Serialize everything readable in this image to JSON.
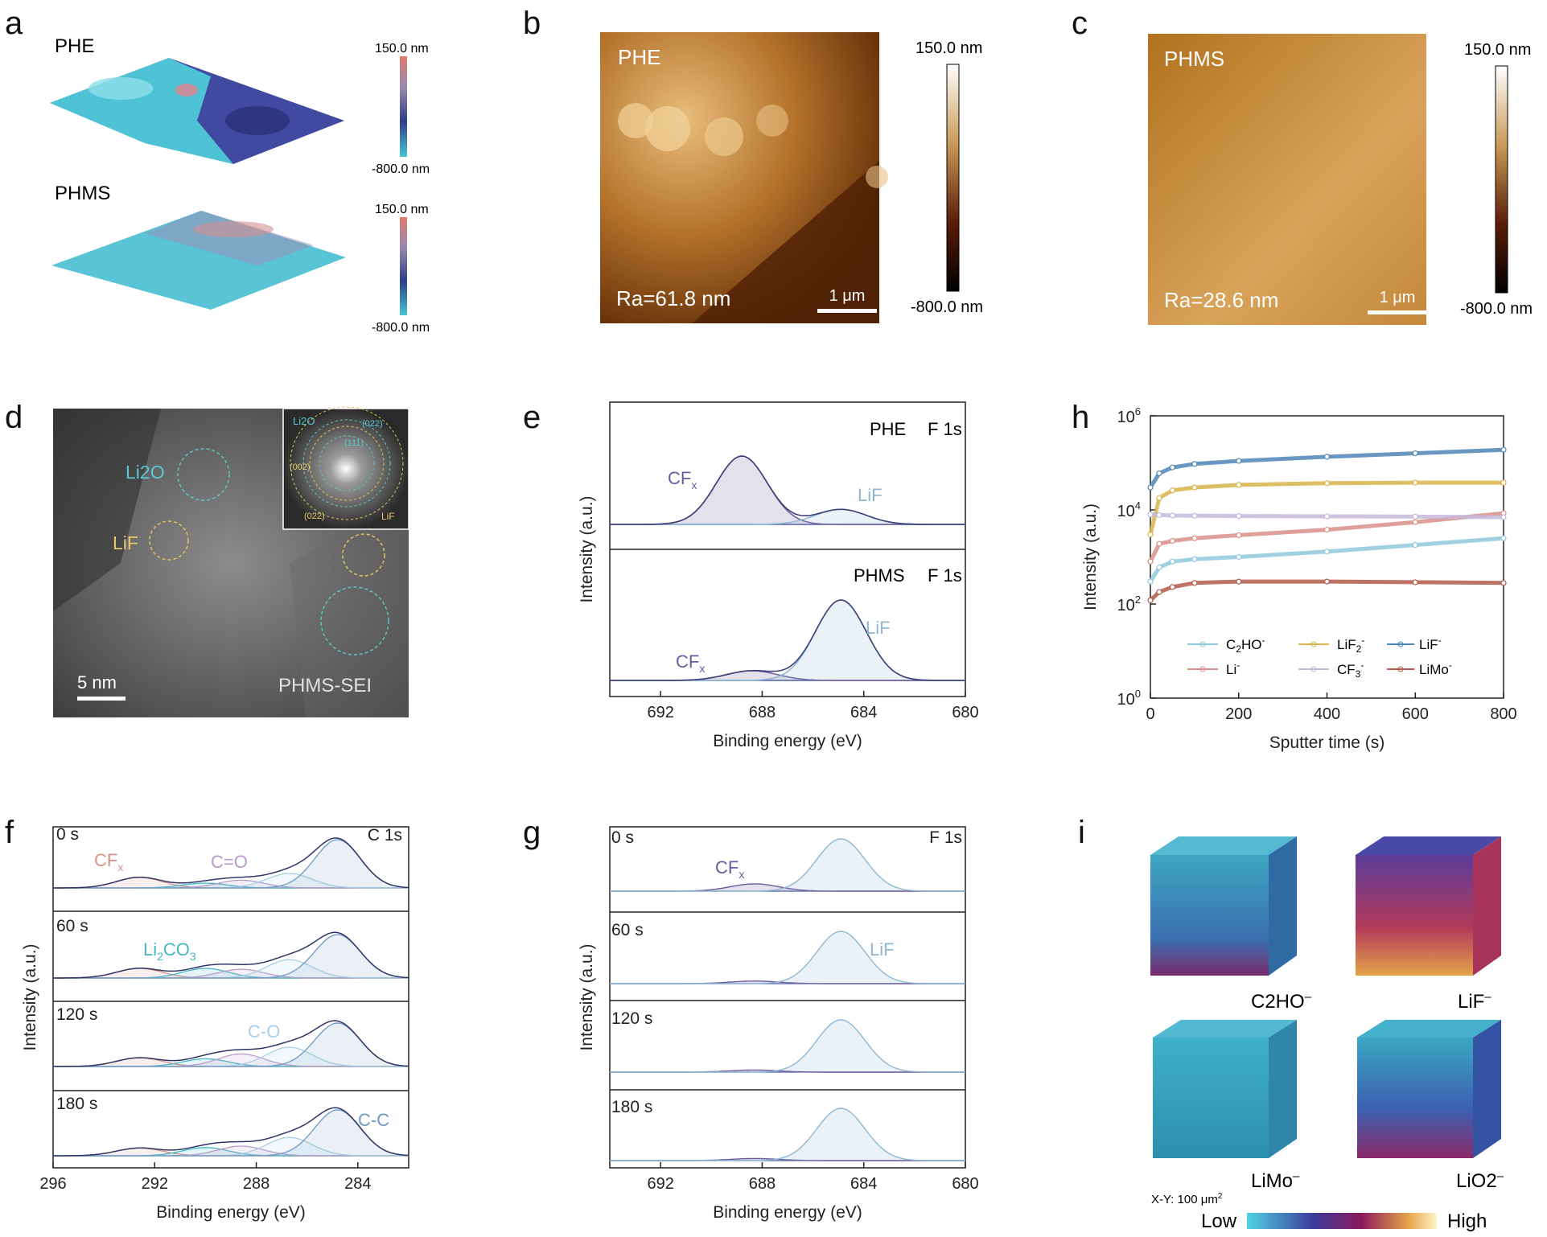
{
  "panel_letters": [
    "a",
    "b",
    "c",
    "d",
    "e",
    "h",
    "f",
    "g",
    "i"
  ],
  "colors": {
    "afm_gold_dark": "#8a4f0f",
    "afm_gold_light": "#e9b169",
    "xps_blue": "#8fb7d3",
    "xps_purple": "#6b5a9c",
    "xps_baseline": "#4a5aa0",
    "cfx_red": "#d08a86",
    "licoo_teal": "#46b6c3",
    "cc_blue": "#7aa7c9"
  },
  "panel_a": {
    "phe_label": "PHE",
    "phms_label": "PHMS",
    "scale_top": "150.0 nm",
    "scale_bottom": "-800.0 nm"
  },
  "panel_b": {
    "label": "PHE",
    "roughness": "Ra=61.8 nm",
    "scalebar": "1 μm",
    "cbar_top": "150.0 nm",
    "cbar_bottom": "-800.0 nm"
  },
  "panel_c": {
    "label": "PHMS",
    "roughness": "Ra=28.6 nm",
    "scalebar": "1 μm",
    "cbar_top": "150.0 nm",
    "cbar_bottom": "-800.0 nm"
  },
  "panel_d": {
    "li2o": "Li2O",
    "lif": "LiF",
    "scalebar": "5 nm",
    "caption": "PHMS-SEI",
    "fft_li2o": "Li2O",
    "fft_lif": "LiF",
    "fft_022_top": "(022)",
    "fft_111": "(111)",
    "fft_002": "(002)",
    "fft_022_bottom": "(022)"
  },
  "chart_data": [
    {
      "panel": "e",
      "type": "line",
      "xlabel": "Binding energy (eV)",
      "ylabel": "Intensity (a.u.)",
      "xlim": [
        694,
        680
      ],
      "xticks": [
        692,
        688,
        684,
        680
      ],
      "stack": [
        {
          "sample": "PHE",
          "core": "F 1s",
          "peaks": [
            {
              "name": "CFx",
              "center": 688.8,
              "height": 1.0
            },
            {
              "name": "LiF",
              "center": 684.9,
              "height": 0.22
            }
          ]
        },
        {
          "sample": "PHMS",
          "core": "F 1s",
          "peaks": [
            {
              "name": "CFx",
              "center": 688.4,
              "height": 0.12
            },
            {
              "name": "LiF",
              "center": 684.9,
              "height": 1.0
            }
          ]
        }
      ]
    },
    {
      "panel": "h",
      "type": "line",
      "xlabel": "Sputter time (s)",
      "ylabel": "Intensity (a.u.)",
      "xlim": [
        0,
        800
      ],
      "xticks": [
        0,
        200,
        400,
        600,
        800
      ],
      "yscale": "log",
      "ylim": [
        1,
        1000000
      ],
      "yticks": [
        "10^0",
        "10^2",
        "10^4",
        "10^6"
      ],
      "series": [
        {
          "name": "C2HO-",
          "color": "#8fc9dc",
          "x": [
            0,
            20,
            50,
            100,
            200,
            400,
            600,
            800
          ],
          "y": [
            300,
            600,
            800,
            900,
            1000,
            1300,
            1800,
            2500
          ]
        },
        {
          "name": "LiF2-",
          "color": "#d8b44a",
          "x": [
            0,
            20,
            50,
            100,
            200,
            400,
            600,
            800
          ],
          "y": [
            3000,
            18000,
            26000,
            30000,
            34000,
            37000,
            38000,
            38000
          ]
        },
        {
          "name": "LiF-",
          "color": "#4e86b6",
          "x": [
            0,
            20,
            50,
            100,
            200,
            400,
            600,
            800
          ],
          "y": [
            30000,
            60000,
            80000,
            95000,
            110000,
            135000,
            160000,
            190000
          ]
        },
        {
          "name": "Li-",
          "color": "#d98f88",
          "x": [
            0,
            20,
            50,
            100,
            200,
            400,
            600,
            800
          ],
          "y": [
            800,
            1900,
            2200,
            2500,
            2900,
            3800,
            5500,
            8500
          ]
        },
        {
          "name": "CF3-",
          "color": "#c6b8dc",
          "x": [
            0,
            20,
            50,
            100,
            200,
            400,
            600,
            800
          ],
          "y": [
            8000,
            7800,
            7600,
            7500,
            7400,
            7300,
            7200,
            7000
          ]
        },
        {
          "name": "LiMo-",
          "color": "#b35a4a",
          "x": [
            0,
            20,
            50,
            100,
            200,
            400,
            600,
            800
          ],
          "y": [
            120,
            180,
            230,
            280,
            300,
            300,
            290,
            280
          ]
        }
      ]
    },
    {
      "panel": "f",
      "type": "line",
      "xlabel": "Binding energy (eV)",
      "ylabel": "Intensity (a.u.)",
      "core": "C 1s",
      "xlim": [
        296,
        282
      ],
      "xticks": [
        296,
        292,
        288,
        284
      ],
      "components": [
        {
          "name": "CFx",
          "center": 292.6,
          "color": "#d8908a"
        },
        {
          "name": "Li2CO3",
          "center": 290.0,
          "color": "#46b6c3"
        },
        {
          "name": "C=O",
          "center": 288.6,
          "color": "#b99ac8"
        },
        {
          "name": "C-O",
          "center": 286.7,
          "color": "#a9cfe4"
        },
        {
          "name": "C-C",
          "center": 284.8,
          "color": "#6f98c2"
        }
      ],
      "stack": [
        {
          "time": "0 s",
          "heights": [
            0.22,
            0.1,
            0.16,
            0.3,
            1.0
          ]
        },
        {
          "time": "60 s",
          "heights": [
            0.2,
            0.2,
            0.18,
            0.38,
            0.9
          ]
        },
        {
          "time": "120 s",
          "heights": [
            0.18,
            0.16,
            0.26,
            0.4,
            0.9
          ]
        },
        {
          "time": "180 s",
          "heights": [
            0.16,
            0.17,
            0.2,
            0.38,
            0.95
          ]
        }
      ]
    },
    {
      "panel": "g",
      "type": "line",
      "xlabel": "Binding energy (eV)",
      "ylabel": "Intensity (a.u.)",
      "core": "F 1s",
      "xlim": [
        694,
        680
      ],
      "xticks": [
        692,
        688,
        684,
        680
      ],
      "stack": [
        {
          "time": "0 s",
          "cfx": 0.14,
          "lif": 1.0
        },
        {
          "time": "60 s",
          "cfx": 0.05,
          "lif": 1.0
        },
        {
          "time": "120 s",
          "cfx": 0.04,
          "lif": 1.0
        },
        {
          "time": "180 s",
          "cfx": 0.04,
          "lif": 1.0
        }
      ],
      "peak_centers": {
        "CFx": 688.3,
        "LiF": 684.9
      }
    }
  ],
  "panel_e_text": {
    "phe": "PHE",
    "phe_core": "F 1s",
    "phms": "PHMS",
    "phms_core": "F 1s",
    "cfx": "CF",
    "cfx_sub": "x",
    "lif": "LiF"
  },
  "panel_h_text": {
    "legend": [
      {
        "base": "C",
        "sub": "2",
        "rest": "HO",
        "sup": "-"
      },
      {
        "base": "LiF",
        "sub": "2",
        "rest": "",
        "sup": "-"
      },
      {
        "base": "LiF",
        "sub": "",
        "rest": "",
        "sup": "-"
      },
      {
        "base": "Li",
        "sub": "",
        "rest": "",
        "sup": "-"
      },
      {
        "base": "CF",
        "sub": "3",
        "rest": "",
        "sup": "-"
      },
      {
        "base": "LiMo",
        "sub": "",
        "rest": "",
        "sup": "-"
      }
    ]
  },
  "panel_f_text": {
    "cfx": "CF",
    "cfx_sub": "x",
    "co_double": "C=O",
    "li2co3_a": "Li",
    "li2co3_sub": "2",
    "li2co3_b": "CO",
    "li2co3_sub2": "3",
    "c_o": "C-O",
    "c_c": "C-C"
  },
  "panel_g_text": {
    "cfx": "CF",
    "cfx_sub": "x",
    "lif": "LiF"
  },
  "panel_i": {
    "cubes": [
      {
        "label": "C2HO",
        "sup": "–"
      },
      {
        "label": "LiF",
        "sup": "–"
      },
      {
        "label": "LiMo",
        "sup": "–"
      },
      {
        "label": "LiO2",
        "sup": "–"
      }
    ],
    "xy": "X-Y: 100 μm",
    "xy_sup": "2",
    "low": "Low",
    "high": "High"
  }
}
